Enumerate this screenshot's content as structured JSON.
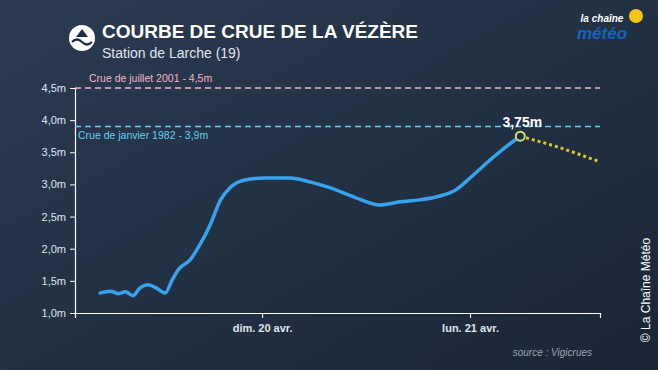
{
  "chart_data": {
    "type": "line",
    "title": "COURBE DE CRUE DE LA VÉZÈRE",
    "subtitle": "Station de Larche (19)",
    "logo": [
      "la chaîne",
      "météo"
    ],
    "source": "source : Vigicrues",
    "copyright": "© La Chaîne Météo",
    "xlim": [
      2.4,
      63
    ],
    "xticks": [
      {
        "value": 24,
        "label": "dim. 20 avr."
      },
      {
        "value": 48,
        "label": "lun. 21 avr."
      }
    ],
    "ylim": [
      1.0,
      4.5
    ],
    "yticks": [
      {
        "value": 1.0,
        "label": "1,0m"
      },
      {
        "value": 1.5,
        "label": "1,5m"
      },
      {
        "value": 2.0,
        "label": "2,0m"
      },
      {
        "value": 2.5,
        "label": "2,5m"
      },
      {
        "value": 3.0,
        "label": "3,0m"
      },
      {
        "value": 3.5,
        "label": "3,5m"
      },
      {
        "value": 4.0,
        "label": "4,0m"
      },
      {
        "value": 4.5,
        "label": "4,5m"
      }
    ],
    "grid": false,
    "series": [
      {
        "color": "#36a3ec",
        "line_style": "solid",
        "x": [
          5.3,
          6.5,
          7.4,
          8.2,
          9.1,
          9.9,
          10.8,
          11.9,
          12.8,
          13.6,
          14.3,
          15.7,
          16.8,
          18.0,
          19.2,
          20.3,
          22.0,
          24.3,
          27.2,
          29.5,
          31.8,
          34.7,
          37.6,
          39.9,
          42.2,
          44.5,
          46.3,
          48.0,
          50.3,
          52.0,
          53.8
        ],
        "values": [
          1.31,
          1.34,
          1.3,
          1.33,
          1.27,
          1.39,
          1.44,
          1.38,
          1.31,
          1.51,
          1.67,
          1.83,
          2.06,
          2.37,
          2.76,
          2.95,
          3.07,
          3.1,
          3.1,
          3.04,
          2.95,
          2.8,
          2.68,
          2.73,
          2.76,
          2.82,
          2.91,
          3.1,
          3.38,
          3.57,
          3.75
        ]
      },
      {
        "color": "#d8c92c",
        "line_style": "dotted",
        "x": [
          53.8,
          58.4,
          63
        ],
        "values": [
          3.75,
          3.57,
          3.35
        ]
      }
    ],
    "reference_lines": [
      {
        "label": "Crue de juillet 2001 - 4,5m",
        "value": 4.5,
        "color": "#f3b6c8"
      },
      {
        "label": "Crue de janvier 1982 - 3,9m",
        "value": 3.9,
        "color": "#5fd3f2"
      }
    ],
    "annotations": [
      {
        "text": "3,75m",
        "x": 53.8,
        "value": 3.75
      }
    ]
  }
}
